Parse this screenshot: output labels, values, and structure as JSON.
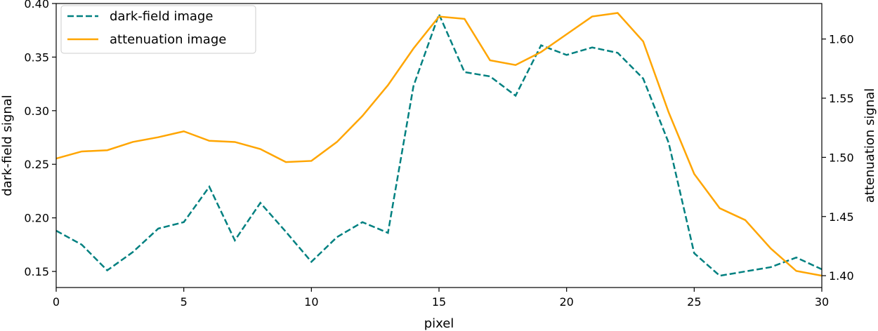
{
  "chart_data": {
    "type": "line",
    "xlabel": "pixel",
    "ylabel_left": "dark-field signal",
    "ylabel_right": "attenuation signal",
    "xlim": [
      0,
      30
    ],
    "ylim_left": [
      0.135,
      0.4
    ],
    "ylim_right": [
      1.39,
      1.63
    ],
    "x_ticks": [
      0,
      5,
      10,
      15,
      20,
      25,
      30
    ],
    "y_left_ticks": [
      0.15,
      0.2,
      0.25,
      0.3,
      0.35,
      0.4
    ],
    "y_right_ticks": [
      1.4,
      1.45,
      1.5,
      1.55,
      1.6
    ],
    "x_tick_labels": [
      "0",
      "5",
      "10",
      "15",
      "20",
      "25",
      "30"
    ],
    "y_left_tick_labels": [
      "0.15",
      "0.20",
      "0.25",
      "0.30",
      "0.35",
      "0.40"
    ],
    "y_right_tick_labels": [
      "1.40",
      "1.45",
      "1.50",
      "1.55",
      "1.60"
    ],
    "grid": false,
    "legend_position": "top-left",
    "x": [
      0,
      1,
      2,
      3,
      4,
      5,
      6,
      7,
      8,
      9,
      10,
      11,
      12,
      13,
      14,
      15,
      16,
      17,
      18,
      19,
      20,
      21,
      22,
      23,
      24,
      25,
      26,
      27,
      28,
      29,
      30
    ],
    "series": [
      {
        "name": "dark-field image",
        "axis": "left",
        "color": "#008080",
        "style": "dashed",
        "values": [
          0.188,
          0.175,
          0.151,
          0.168,
          0.19,
          0.196,
          0.229,
          0.179,
          0.214,
          0.187,
          0.159,
          0.182,
          0.196,
          0.186,
          0.323,
          0.39,
          0.336,
          0.332,
          0.314,
          0.361,
          0.352,
          0.359,
          0.354,
          0.33,
          0.27,
          0.167,
          0.146,
          0.15,
          0.154,
          0.163,
          0.152
        ]
      },
      {
        "name": "attenuation image",
        "axis": "right",
        "color": "#ffa500",
        "style": "solid",
        "values": [
          1.499,
          1.505,
          1.506,
          1.513,
          1.517,
          1.522,
          1.514,
          1.513,
          1.507,
          1.496,
          1.497,
          1.513,
          1.535,
          1.561,
          1.592,
          1.619,
          1.617,
          1.582,
          1.578,
          1.589,
          1.604,
          1.619,
          1.622,
          1.598,
          1.538,
          1.486,
          1.457,
          1.447,
          1.423,
          1.404,
          1.4
        ]
      }
    ]
  }
}
